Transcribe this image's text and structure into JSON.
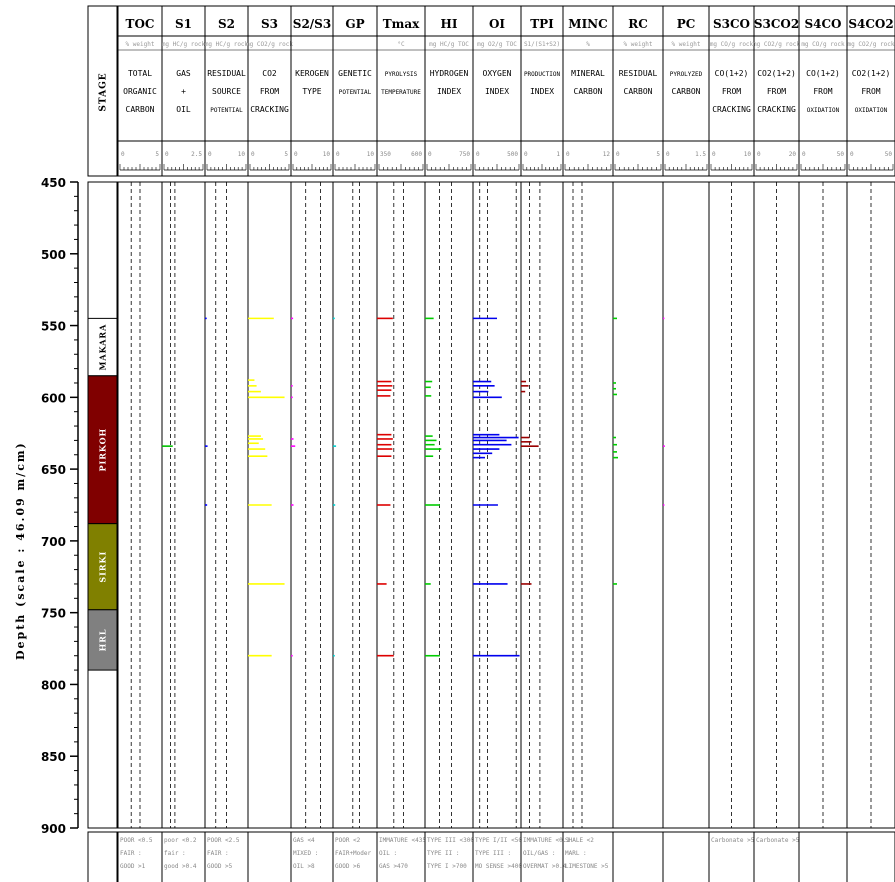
{
  "chart_data": {
    "type": "rock-eval-log",
    "ylabel": "Depth (scale : 46.09 m/cm)",
    "ylim": [
      450,
      900
    ],
    "yticks": [
      450,
      500,
      550,
      600,
      650,
      700,
      750,
      800,
      850,
      900
    ],
    "stage_header": "STAGE",
    "stages": [
      {
        "name": "MAKARA",
        "top": 545,
        "bottom": 585,
        "color": "#ffffff",
        "text_color": "#000000"
      },
      {
        "name": "PIRKOH",
        "top": 585,
        "bottom": 688,
        "color": "#800000",
        "text_color": "#ffffff"
      },
      {
        "name": "SIRKI",
        "top": 688,
        "bottom": 748,
        "color": "#808000",
        "text_color": "#ffffff"
      },
      {
        "name": "HRL",
        "top": 748,
        "bottom": 790,
        "color": "#808080",
        "text_color": "#ffffff"
      }
    ],
    "columns": [
      {
        "title": "TOC",
        "unit": "% weight",
        "desc": [
          "TOTAL",
          "ORGANIC",
          "CARBON"
        ],
        "scale": [
          "0",
          "5"
        ],
        "color": "#000000",
        "refs": [
          0.3,
          0.5
        ],
        "samples": [],
        "footer": [
          "POOR <0.5",
          "FAIR   :",
          "GOOD   >1"
        ]
      },
      {
        "title": "S1",
        "unit": "mg HC/g rock",
        "desc": [
          "GAS",
          "+",
          "OIL"
        ],
        "scale": [
          "0",
          "2.5"
        ],
        "color": "#00c000",
        "refs": [
          0.2,
          0.3
        ],
        "samples": [
          {
            "depth": 634,
            "value": 0.25
          }
        ],
        "footer": [
          "poor <0.2",
          "fair   :",
          "good >0.4"
        ]
      },
      {
        "title": "S2",
        "unit": "mg HC/g rock",
        "desc": [
          "RESIDUAL",
          "SOURCE",
          "POTENTIAL"
        ],
        "scale": [
          "0",
          "10"
        ],
        "color": "#0000ff",
        "refs": [
          0.25,
          0.5
        ],
        "samples": [
          {
            "depth": 545,
            "value": 0.04
          },
          {
            "depth": 634,
            "value": 0.06
          },
          {
            "depth": 675,
            "value": 0.05
          }
        ],
        "footer": [
          "POOR <2.5",
          "FAIR   :",
          "GOOD  >5"
        ]
      },
      {
        "title": "S3",
        "unit": "mg CO2/g rock",
        "desc": [
          "CO2",
          "FROM",
          "CRACKING"
        ],
        "scale": [
          "0",
          "5"
        ],
        "color": "#ffff00",
        "refs": [],
        "samples": [
          {
            "depth": 545,
            "value": 0.6
          },
          {
            "depth": 588,
            "value": 0.15
          },
          {
            "depth": 592,
            "value": 0.2
          },
          {
            "depth": 596,
            "value": 0.3
          },
          {
            "depth": 600,
            "value": 0.85
          },
          {
            "depth": 627,
            "value": 0.3
          },
          {
            "depth": 629,
            "value": 0.35
          },
          {
            "depth": 632,
            "value": 0.25
          },
          {
            "depth": 636,
            "value": 0.4
          },
          {
            "depth": 641,
            "value": 0.45
          },
          {
            "depth": 675,
            "value": 0.55
          },
          {
            "depth": 730,
            "value": 0.85
          },
          {
            "depth": 780,
            "value": 0.55
          }
        ],
        "footer": []
      },
      {
        "title": "S2/S3",
        "unit": "",
        "desc": [
          "KEROGEN",
          "TYPE"
        ],
        "scale": [
          "0",
          "10"
        ],
        "color": "#ff00ff",
        "refs": [
          0.35,
          0.7
        ],
        "samples": [
          {
            "depth": 545,
            "value": 0.05
          },
          {
            "depth": 592,
            "value": 0.04
          },
          {
            "depth": 600,
            "value": 0.04
          },
          {
            "depth": 629,
            "value": 0.06
          },
          {
            "depth": 634,
            "value": 0.1
          },
          {
            "depth": 675,
            "value": 0.06
          },
          {
            "depth": 780,
            "value": 0.04
          }
        ],
        "footer": [
          "GAS   <4",
          "MIXED  :",
          "OIL   >8"
        ]
      },
      {
        "title": "GP",
        "unit": "",
        "desc": [
          "GENETIC",
          "POTENTIAL"
        ],
        "scale": [
          "0",
          "10"
        ],
        "color": "#00cccc",
        "refs": [
          0.45,
          0.6
        ],
        "samples": [
          {
            "depth": 545,
            "value": 0.04
          },
          {
            "depth": 634,
            "value": 0.07
          },
          {
            "depth": 675,
            "value": 0.05
          },
          {
            "depth": 780,
            "value": 0.04
          }
        ],
        "footer": [
          "POOR   <2",
          "FAIR+Moder",
          "GOOD   >6"
        ]
      },
      {
        "title": "Tmax",
        "unit": "°C",
        "desc": [
          "PYROLYSIS",
          "TEMPERATURE"
        ],
        "scale": [
          "350",
          "600"
        ],
        "color": "#dd0000",
        "refs": [
          0.35,
          0.55
        ],
        "samples": [
          {
            "depth": 545,
            "value": 0.33
          },
          {
            "depth": 589,
            "value": 0.3
          },
          {
            "depth": 592,
            "value": 0.32
          },
          {
            "depth": 595,
            "value": 0.3
          },
          {
            "depth": 599,
            "value": 0.28
          },
          {
            "depth": 626,
            "value": 0.3
          },
          {
            "depth": 629,
            "value": 0.33
          },
          {
            "depth": 633,
            "value": 0.3
          },
          {
            "depth": 636,
            "value": 0.32
          },
          {
            "depth": 641,
            "value": 0.3
          },
          {
            "depth": 675,
            "value": 0.28
          },
          {
            "depth": 730,
            "value": 0.2
          },
          {
            "depth": 780,
            "value": 0.35
          }
        ],
        "footer": [
          "IMMATURE <435",
          "OIL       :",
          "GAS     >470"
        ]
      },
      {
        "title": "HI",
        "unit": "mg HC/g TOC",
        "desc": [
          "HYDROGEN",
          "INDEX"
        ],
        "scale": [
          "0",
          "750"
        ],
        "color": "#00cc00",
        "refs": [
          0.3,
          0.55
        ],
        "samples": [
          {
            "depth": 545,
            "value": 0.18
          },
          {
            "depth": 589,
            "value": 0.15
          },
          {
            "depth": 593,
            "value": 0.12
          },
          {
            "depth": 599,
            "value": 0.13
          },
          {
            "depth": 627,
            "value": 0.16
          },
          {
            "depth": 630,
            "value": 0.24
          },
          {
            "depth": 633,
            "value": 0.2
          },
          {
            "depth": 636,
            "value": 0.34
          },
          {
            "depth": 641,
            "value": 0.17
          },
          {
            "depth": 675,
            "value": 0.31
          },
          {
            "depth": 730,
            "value": 0.12
          },
          {
            "depth": 780,
            "value": 0.31
          }
        ],
        "footer": [
          "TYPE III <300",
          "TYPE II    :",
          "TYPE I   >700"
        ]
      },
      {
        "title": "OI",
        "unit": "mg O2/g TOC",
        "desc": [
          "OXYGEN",
          "INDEX"
        ],
        "scale": [
          "0",
          "500"
        ],
        "color": "#0000ee",
        "refs": [
          0.14,
          0.3,
          0.9
        ],
        "samples": [
          {
            "depth": 545,
            "value": 0.5
          },
          {
            "depth": 589,
            "value": 0.38
          },
          {
            "depth": 592,
            "value": 0.45
          },
          {
            "depth": 596,
            "value": 0.32
          },
          {
            "depth": 600,
            "value": 0.6
          },
          {
            "depth": 626,
            "value": 0.55
          },
          {
            "depth": 628,
            "value": 0.95
          },
          {
            "depth": 630,
            "value": 0.7
          },
          {
            "depth": 633,
            "value": 0.8
          },
          {
            "depth": 636,
            "value": 0.55
          },
          {
            "depth": 639,
            "value": 0.4
          },
          {
            "depth": 642,
            "value": 0.25
          },
          {
            "depth": 675,
            "value": 0.52
          },
          {
            "depth": 730,
            "value": 0.72
          },
          {
            "depth": 780,
            "value": 0.97
          }
        ],
        "footer": [
          "TYPE I/II <50",
          "TYPE III   :",
          "MO SENSE >400"
        ]
      },
      {
        "title": "TPI",
        "unit": "S1/(S1+S2)",
        "desc": [
          "PRODUCTION",
          "INDEX"
        ],
        "scale": [
          "0",
          "1"
        ],
        "color": "#990000",
        "refs": [
          0.2,
          0.45
        ],
        "samples": [
          {
            "depth": 589,
            "value": 0.12
          },
          {
            "depth": 592,
            "value": 0.18
          },
          {
            "depth": 596,
            "value": 0.1
          },
          {
            "depth": 628,
            "value": 0.2
          },
          {
            "depth": 631,
            "value": 0.25
          },
          {
            "depth": 634,
            "value": 0.42
          },
          {
            "depth": 730,
            "value": 0.25
          }
        ],
        "footer": [
          "IMMATURE <0.1",
          "OIL/GAS    :",
          "OVERMAT >0.4"
        ]
      },
      {
        "title": "MINC",
        "unit": "%",
        "desc": [
          "MINERAL",
          "CARBON"
        ],
        "scale": [
          "0",
          "12"
        ],
        "color": "#000000",
        "refs": [
          0.2,
          0.38
        ],
        "samples": [],
        "footer": [
          "SHALE    <2",
          "MARL      :",
          "LIMESTONE >5"
        ]
      },
      {
        "title": "RC",
        "unit": "% weight",
        "desc": [
          "RESIDUAL",
          "CARBON"
        ],
        "scale": [
          "0",
          "5"
        ],
        "color": "#00cc00",
        "refs": [],
        "samples": [
          {
            "depth": 545,
            "value": 0.08
          },
          {
            "depth": 590,
            "value": 0.06
          },
          {
            "depth": 594,
            "value": 0.06
          },
          {
            "depth": 598,
            "value": 0.08
          },
          {
            "depth": 628,
            "value": 0.06
          },
          {
            "depth": 633,
            "value": 0.08
          },
          {
            "depth": 638,
            "value": 0.08
          },
          {
            "depth": 642,
            "value": 0.1
          },
          {
            "depth": 730,
            "value": 0.08
          }
        ],
        "footer": []
      },
      {
        "title": "PC",
        "unit": "% weight",
        "desc": [
          "PYROLYZED",
          "CARBON"
        ],
        "scale": [
          "0",
          "1.5"
        ],
        "color": "#ff00ff",
        "refs": [],
        "samples": [
          {
            "depth": 545,
            "value": 0.03
          },
          {
            "depth": 634,
            "value": 0.04
          },
          {
            "depth": 675,
            "value": 0.03
          }
        ],
        "footer": []
      },
      {
        "title": "S3CO",
        "unit": "mg CO/g rock",
        "desc": [
          "CO(1+2)",
          "FROM",
          "CRACKING"
        ],
        "scale": [
          "0",
          "10"
        ],
        "color": "#000000",
        "refs": [
          0.5
        ],
        "samples": [],
        "footer": [
          "Carbonate >5"
        ]
      },
      {
        "title": "S3CO2",
        "unit": "mg CO2/g rock",
        "desc": [
          "CO2(1+2)",
          "FROM",
          "CRACKING"
        ],
        "scale": [
          "0",
          "20"
        ],
        "color": "#000000",
        "refs": [
          0.5
        ],
        "samples": [],
        "footer": [
          "Carbonate >5"
        ]
      },
      {
        "title": "S4CO",
        "unit": "mg CO/g rock",
        "desc": [
          "CO(1+2)",
          "FROM",
          "OXIDATION"
        ],
        "scale": [
          "0",
          "50"
        ],
        "color": "#000000",
        "refs": [
          0.5
        ],
        "samples": [],
        "footer": []
      },
      {
        "title": "S4CO2",
        "unit": "mg CO2/g rock",
        "desc": [
          "CO2(1+2)",
          "FROM",
          "OXIDATION"
        ],
        "scale": [
          "0",
          "50"
        ],
        "color": "#000000",
        "refs": [
          0.5
        ],
        "samples": [],
        "footer": []
      }
    ]
  }
}
